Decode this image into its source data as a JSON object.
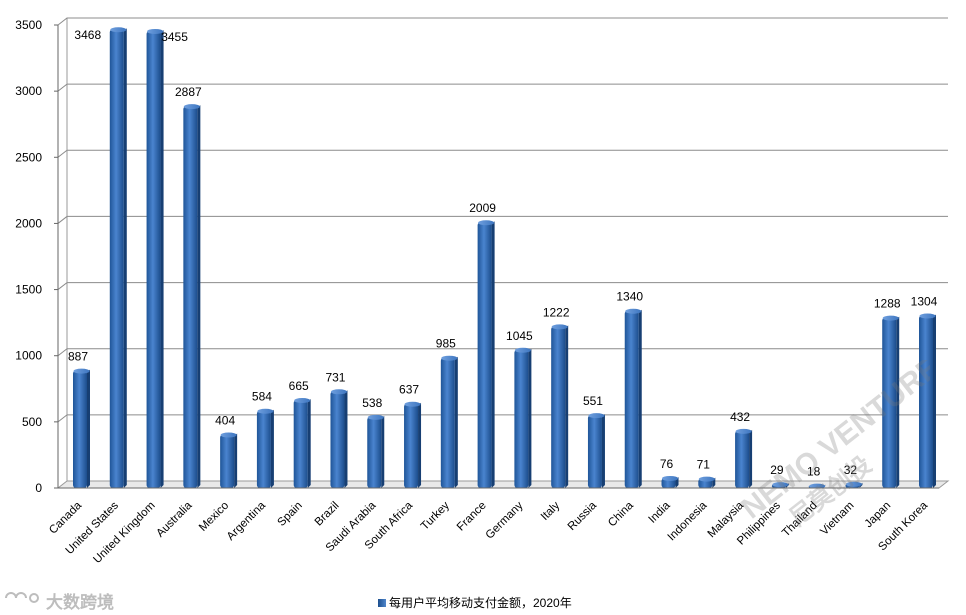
{
  "chart_data": {
    "type": "bar",
    "categories": [
      "Canada",
      "United States",
      "United Kingdom",
      "Australia",
      "Mexico",
      "Argentina",
      "Spain",
      "Brazil",
      "Saudi Arabia",
      "South Africa",
      "Turkey",
      "France",
      "Germany",
      "Italy",
      "Russia",
      "China",
      "India",
      "Indonesia",
      "Malaysia",
      "Philippines",
      "Thailand",
      "Vietnam",
      "Japan",
      "South Korea"
    ],
    "series": [
      {
        "name": "每用户平均移动支付金额，2020年",
        "values": [
          887,
          3468,
          3455,
          2887,
          404,
          584,
          665,
          731,
          538,
          637,
          985,
          2009,
          1045,
          1222,
          551,
          1340,
          76,
          71,
          432,
          29,
          18,
          32,
          1288,
          1304
        ]
      }
    ],
    "data_labels": [
      "887",
      "3468",
      "3455",
      "2887",
      "404",
      "584",
      "665",
      "731",
      "538",
      "637",
      "985",
      "2009",
      "1045",
      "1222",
      "551",
      "1340",
      "76",
      "71",
      "432",
      "29",
      "18",
      "32",
      "1288",
      "1304"
    ],
    "ylim": [
      0,
      3500
    ],
    "yticks": [
      "0",
      "500",
      "1000",
      "1500",
      "2000",
      "2500",
      "3000",
      "3500"
    ],
    "grid": true,
    "legend_position": "bottom",
    "bar_color": "#2f65ad"
  },
  "watermarks": {
    "brand": "NEMO VENTURES",
    "brand_cn": "尼莫创投",
    "corner": "大数跨境"
  }
}
